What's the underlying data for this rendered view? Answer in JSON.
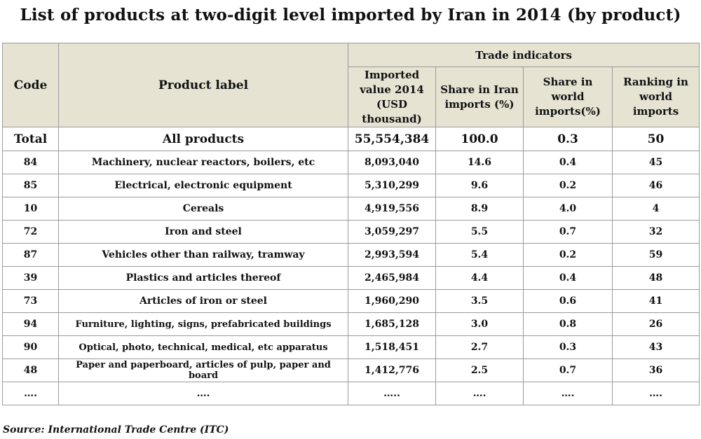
{
  "title": "List of products at two-digit level imported by Iran in 2014 (by product)",
  "table": {
    "headers": {
      "code": "Code",
      "label": "Product label",
      "group": "Trade indicators",
      "value": "Imported value 2014 (USD thousand)",
      "share_iran": "Share in Iran imports (%)",
      "share_world": "Share in world imports(%)",
      "ranking": "Ranking  in world imports"
    },
    "total": {
      "code": "Total",
      "label": "All products",
      "value": "55,554,384",
      "share_iran": "100.0",
      "share_world": "0.3",
      "ranking": "50"
    },
    "rows": [
      {
        "code": "84",
        "label": "Machinery, nuclear reactors, boilers, etc",
        "value": "8,093,040",
        "share_iran": "14.6",
        "share_world": "0.4",
        "ranking": "45"
      },
      {
        "code": "85",
        "label": "Electrical, electronic equipment",
        "value": "5,310,299",
        "share_iran": "9.6",
        "share_world": "0.2",
        "ranking": "46"
      },
      {
        "code": "10",
        "label": "Cereals",
        "value": "4,919,556",
        "share_iran": "8.9",
        "share_world": "4.0",
        "ranking": "4"
      },
      {
        "code": "72",
        "label": "Iron and steel",
        "value": "3,059,297",
        "share_iran": "5.5",
        "share_world": "0.7",
        "ranking": "32"
      },
      {
        "code": "87",
        "label": "Vehicles other than railway, tramway",
        "value": "2,993,594",
        "share_iran": "5.4",
        "share_world": "0.2",
        "ranking": "59"
      },
      {
        "code": "39",
        "label": "Plastics and articles thereof",
        "value": "2,465,984",
        "share_iran": "4.4",
        "share_world": "0.4",
        "ranking": "48"
      },
      {
        "code": "73",
        "label": "Articles of iron or steel",
        "value": "1,960,290",
        "share_iran": "3.5",
        "share_world": "0.6",
        "ranking": "41"
      },
      {
        "code": "94",
        "label": "Furniture, lighting, signs, prefabricated buildings",
        "value": "1,685,128",
        "share_iran": "3.0",
        "share_world": "0.8",
        "ranking": "26"
      },
      {
        "code": "90",
        "label": "Optical, photo, technical, medical, etc apparatus",
        "value": "1,518,451",
        "share_iran": "2.7",
        "share_world": "0.3",
        "ranking": "43"
      },
      {
        "code": "48",
        "label": "Paper and paperboard, articles of pulp, paper and board",
        "value": "1,412,776",
        "share_iran": "2.5",
        "share_world": "0.7",
        "ranking": "36"
      }
    ],
    "ellipsis_row": {
      "code": "….",
      "label": "….",
      "value": "…..",
      "share_iran": "….",
      "share_world": "….",
      "ranking": "…."
    }
  },
  "source": "Source: International Trade Centre (ITC)"
}
